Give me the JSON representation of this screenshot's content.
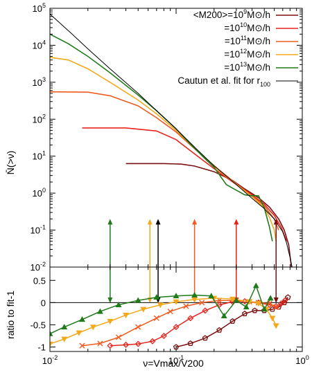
{
  "chart_data": [
    {
      "panel": "top",
      "type": "line",
      "ylabel": "N̄(>ν)",
      "xscale": "log",
      "yscale": "log",
      "xlim": [
        0.01,
        1.0
      ],
      "ylim": [
        0.01,
        100000
      ],
      "x_ticks": [
        "10^-2",
        "10^-1",
        "10^0"
      ],
      "y_ticks": [
        "10^-2",
        "10^-1",
        "10^0",
        "10^1",
        "10^2",
        "10^3",
        "10^4",
        "10^5"
      ],
      "legend_position": "top-right",
      "series": [
        {
          "name": "<M200>=10^9 M⊙/h",
          "color": "#7b0f0f",
          "points": [
            [
              0.04,
              6.3
            ],
            [
              0.08,
              6.3
            ],
            [
              0.11,
              6.1
            ],
            [
              0.14,
              5.4
            ],
            [
              0.2,
              3.8
            ],
            [
              0.28,
              2.2
            ],
            [
              0.35,
              1.3
            ],
            [
              0.45,
              0.75
            ],
            [
              0.55,
              0.42
            ],
            [
              0.65,
              0.2
            ],
            [
              0.72,
              0.1
            ],
            [
              0.78,
              0.04
            ],
            [
              0.82,
              0.01
            ]
          ]
        },
        {
          "name": "=10^10 M⊙/h",
          "color": "#e8221b",
          "points": [
            [
              0.018,
              58
            ],
            [
              0.04,
              58
            ],
            [
              0.07,
              48
            ],
            [
              0.1,
              28
            ],
            [
              0.13,
              14
            ],
            [
              0.17,
              7
            ],
            [
              0.22,
              3.6
            ],
            [
              0.3,
              1.7
            ],
            [
              0.4,
              0.9
            ],
            [
              0.5,
              0.5
            ],
            [
              0.6,
              0.25
            ],
            [
              0.68,
              0.12
            ],
            [
              0.75,
              0.05
            ]
          ]
        },
        {
          "name": "=10^11 M⊙/h",
          "color": "#f05a1e",
          "points": [
            [
              0.01,
              550
            ],
            [
              0.02,
              540
            ],
            [
              0.03,
              430
            ],
            [
              0.05,
              230
            ],
            [
              0.07,
              110
            ],
            [
              0.1,
              45
            ],
            [
              0.13,
              20
            ],
            [
              0.17,
              9
            ],
            [
              0.22,
              4.2
            ],
            [
              0.3,
              1.8
            ],
            [
              0.4,
              0.85
            ],
            [
              0.5,
              0.45
            ],
            [
              0.6,
              0.2
            ],
            [
              0.65,
              0.1
            ]
          ]
        },
        {
          "name": "=10^12 M⊙/h",
          "color": "#f4a81c",
          "points": [
            [
              0.01,
              4700
            ],
            [
              0.014,
              4000
            ],
            [
              0.02,
              2300
            ],
            [
              0.03,
              1000
            ],
            [
              0.05,
              330
            ],
            [
              0.07,
              140
            ],
            [
              0.1,
              50
            ],
            [
              0.13,
              21
            ],
            [
              0.17,
              9
            ],
            [
              0.22,
              4
            ],
            [
              0.3,
              1.7
            ],
            [
              0.4,
              0.8
            ],
            [
              0.5,
              0.4
            ],
            [
              0.55,
              0.22
            ],
            [
              0.6,
              0.1
            ],
            [
              0.62,
              0.05
            ]
          ]
        },
        {
          "name": "=10^13 M⊙/h",
          "color": "#1f7a1a",
          "points": [
            [
              0.01,
              20000
            ],
            [
              0.014,
              11000
            ],
            [
              0.02,
              5000
            ],
            [
              0.03,
              1800
            ],
            [
              0.05,
              450
            ],
            [
              0.07,
              170
            ],
            [
              0.1,
              55
            ],
            [
              0.13,
              21
            ],
            [
              0.17,
              8.5
            ],
            [
              0.2,
              5
            ],
            [
              0.25,
              1.7
            ],
            [
              0.3,
              1.2
            ],
            [
              0.35,
              0.9
            ],
            [
              0.4,
              0.85
            ],
            [
              0.45,
              0.85
            ],
            [
              0.5,
              0.4
            ],
            [
              0.55,
              0.12
            ],
            [
              0.58,
              0.05
            ]
          ]
        },
        {
          "name": "Cautun et al. fit for r100",
          "color": "#000000",
          "points": [
            [
              0.01,
              70000
            ],
            [
              0.015,
              20000
            ],
            [
              0.02,
              8000
            ],
            [
              0.03,
              2300
            ],
            [
              0.05,
              500
            ],
            [
              0.07,
              170
            ],
            [
              0.1,
              55
            ],
            [
              0.15,
              14
            ],
            [
              0.2,
              5.5
            ],
            [
              0.3,
              1.7
            ],
            [
              0.4,
              0.72
            ],
            [
              0.5,
              0.38
            ],
            [
              0.6,
              0.2
            ],
            [
              0.7,
              0.09
            ],
            [
              0.75,
              0.045
            ],
            [
              0.8,
              0.018
            ],
            [
              0.83,
              0.01
            ]
          ]
        }
      ]
    },
    {
      "panel": "bottom",
      "type": "line",
      "xlabel": "ν=Vmax/V200",
      "ylabel": "ratio to fit-1",
      "xscale": "log",
      "xlim": [
        0.01,
        1.0
      ],
      "ylim": [
        -1.1,
        0.8
      ],
      "x_ticks": [
        "10^-2",
        "10^-1",
        "10^0"
      ],
      "y_ticks": [
        "-1",
        "-0.5",
        "0",
        "0.5"
      ],
      "reference_line": 0,
      "markers": [
        {
          "x": 0.03,
          "color": "#1f7a1a"
        },
        {
          "x": 0.062,
          "color": "#f4a81c"
        },
        {
          "x": 0.072,
          "color": "#000000"
        },
        {
          "x": 0.14,
          "color": "#f05a1e"
        },
        {
          "x": 0.3,
          "color": "#e8221b"
        },
        {
          "x": 0.62,
          "color": "#7b0f0f"
        }
      ],
      "series": [
        {
          "name": "<M200>=10^9 M⊙/h",
          "color": "#7b0f0f",
          "marker": "pentagon",
          "points": [
            [
              0.1,
              -1.0
            ],
            [
              0.13,
              -0.92
            ],
            [
              0.17,
              -0.8
            ],
            [
              0.22,
              -0.62
            ],
            [
              0.28,
              -0.42
            ],
            [
              0.35,
              -0.25
            ],
            [
              0.42,
              -0.18
            ],
            [
              0.5,
              -0.18
            ],
            [
              0.58,
              -0.15
            ],
            [
              0.65,
              -0.1
            ],
            [
              0.72,
              0.0
            ],
            [
              0.77,
              0.12
            ]
          ]
        },
        {
          "name": "=10^10 M⊙/h",
          "color": "#e8221b",
          "marker": "diamond",
          "points": [
            [
              0.03,
              -0.97
            ],
            [
              0.04,
              -0.95
            ],
            [
              0.05,
              -0.93
            ],
            [
              0.065,
              -0.87
            ],
            [
              0.08,
              -0.75
            ],
            [
              0.1,
              -0.55
            ],
            [
              0.13,
              -0.35
            ],
            [
              0.17,
              -0.18
            ],
            [
              0.22,
              -0.05
            ],
            [
              0.28,
              0.02
            ],
            [
              0.35,
              0.03
            ],
            [
              0.45,
              0.0
            ],
            [
              0.55,
              -0.05
            ],
            [
              0.62,
              -0.08
            ],
            [
              0.68,
              -0.02
            ],
            [
              0.73,
              0.05
            ]
          ]
        },
        {
          "name": "=10^11 M⊙/h",
          "color": "#f05a1e",
          "marker": "x",
          "points": [
            [
              0.018,
              -0.97
            ],
            [
              0.025,
              -0.92
            ],
            [
              0.035,
              -0.78
            ],
            [
              0.05,
              -0.55
            ],
            [
              0.07,
              -0.35
            ],
            [
              0.09,
              -0.2
            ],
            [
              0.12,
              -0.08
            ],
            [
              0.16,
              0.0
            ],
            [
              0.22,
              0.05
            ],
            [
              0.3,
              0.05
            ],
            [
              0.38,
              0.02
            ],
            [
              0.45,
              0.0
            ],
            [
              0.55,
              -0.02
            ],
            [
              0.62,
              -0.1
            ]
          ]
        },
        {
          "name": "=10^12 M⊙/h",
          "color": "#f4a81c",
          "marker": "triangle-down",
          "points": [
            [
              0.01,
              -0.93
            ],
            [
              0.013,
              -0.82
            ],
            [
              0.017,
              -0.68
            ],
            [
              0.022,
              -0.55
            ],
            [
              0.03,
              -0.42
            ],
            [
              0.04,
              -0.28
            ],
            [
              0.055,
              -0.15
            ],
            [
              0.075,
              -0.05
            ],
            [
              0.1,
              0.02
            ],
            [
              0.14,
              0.07
            ],
            [
              0.2,
              0.1
            ],
            [
              0.28,
              0.08
            ],
            [
              0.38,
              0.02
            ],
            [
              0.45,
              -0.02
            ],
            [
              0.52,
              -0.15
            ],
            [
              0.58,
              -0.35
            ],
            [
              0.62,
              -0.52
            ]
          ]
        },
        {
          "name": "=10^13 M⊙/h",
          "color": "#1f7a1a",
          "marker": "triangle-up",
          "points": [
            [
              0.01,
              -0.7
            ],
            [
              0.013,
              -0.55
            ],
            [
              0.018,
              -0.38
            ],
            [
              0.025,
              -0.2
            ],
            [
              0.035,
              -0.05
            ],
            [
              0.05,
              0.05
            ],
            [
              0.07,
              0.12
            ],
            [
              0.1,
              0.15
            ],
            [
              0.14,
              0.17
            ],
            [
              0.19,
              0.15
            ],
            [
              0.24,
              -0.3
            ],
            [
              0.3,
              0.05
            ],
            [
              0.36,
              -0.1
            ],
            [
              0.43,
              0.38
            ],
            [
              0.5,
              -0.15
            ],
            [
              0.56,
              0.1
            ]
          ]
        }
      ]
    }
  ]
}
